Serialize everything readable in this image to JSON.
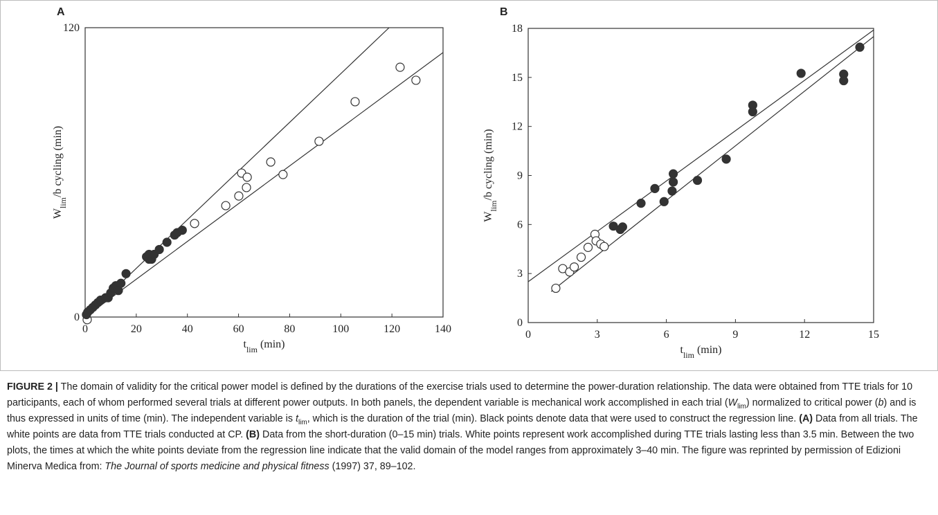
{
  "chart_data": [
    {
      "type": "scatter",
      "panel": "A",
      "xlabel": [
        "t",
        "lim",
        " (min)"
      ],
      "ylabel": [
        "W",
        "lim",
        "/b cycling (min)"
      ],
      "xlim": [
        0,
        140
      ],
      "ylim": [
        0,
        120
      ],
      "xticks": [
        0,
        20,
        40,
        60,
        80,
        100,
        120,
        140
      ],
      "yticks": [
        0,
        120
      ],
      "color": "#333333",
      "series": [
        {
          "marker": "open",
          "x": [
            0.8,
            42.8,
            55,
            60.1,
            61.2,
            63.1,
            63.4,
            72.6,
            77.4,
            91.5,
            105.6,
            123.2,
            129.4
          ],
          "values": [
            -1.1,
            38.8,
            46.2,
            50.2,
            59.7,
            53.7,
            58,
            64.3,
            59.1,
            72.9,
            89.3,
            103.6,
            98.2
          ]
        },
        {
          "marker": "filled",
          "x": [
            0.5,
            1,
            2,
            3,
            4,
            5,
            6,
            8,
            9,
            10,
            11,
            12,
            13,
            14,
            16,
            24,
            25,
            26,
            25,
            27,
            29,
            32,
            35,
            36,
            38
          ],
          "values": [
            1,
            2,
            3,
            4,
            5,
            6,
            7,
            8,
            8,
            10,
            12,
            13,
            11,
            14,
            18,
            25,
            24,
            24,
            26,
            26,
            28,
            31,
            34,
            35,
            36
          ]
        }
      ],
      "lines": [
        {
          "x": [
            0,
            118.9
          ],
          "values": [
            0,
            120
          ]
        },
        {
          "x": [
            0,
            140
          ],
          "values": [
            0,
            109.7
          ]
        }
      ]
    },
    {
      "type": "scatter",
      "panel": "B",
      "xlabel": [
        "t",
        "lim",
        " (min)"
      ],
      "ylabel": [
        "W",
        "lim",
        "/b cycling (min)"
      ],
      "xlim": [
        0,
        15
      ],
      "ylim": [
        0,
        18
      ],
      "xticks": [
        0,
        3,
        6,
        9,
        12,
        15
      ],
      "yticks": [
        0,
        3,
        6,
        9,
        12,
        15,
        18
      ],
      "color": "#333333",
      "series": [
        {
          "marker": "open",
          "x": [
            1.2,
            1.5,
            1.8,
            2.0,
            2.3,
            2.6,
            2.9,
            2.95,
            3.15,
            3.3
          ],
          "values": [
            2.1,
            3.3,
            3.1,
            3.4,
            4.0,
            4.6,
            5.4,
            5.0,
            4.8,
            4.65
          ]
        },
        {
          "marker": "filled",
          "x": [
            3.7,
            4.0,
            4.1,
            4.9,
            5.5,
            5.9,
            6.25,
            6.3,
            6.3,
            7.35,
            8.6,
            9.75,
            9.75,
            11.85,
            13.7,
            13.7,
            14.4
          ],
          "values": [
            5.9,
            5.7,
            5.85,
            7.3,
            8.2,
            7.4,
            8.05,
            8.6,
            9.1,
            8.7,
            10.0,
            13.3,
            12.9,
            15.25,
            15.2,
            14.8,
            16.85
          ]
        }
      ],
      "lines": [
        {
          "x": [
            0,
            15
          ],
          "values": [
            2.5,
            17.9
          ]
        },
        {
          "x": [
            1.0,
            15
          ],
          "values": [
            1.9,
            17.5
          ]
        }
      ]
    }
  ],
  "caption": [
    {
      "text": "FIGURE 2 |",
      "style": "bold"
    },
    {
      "text": " The domain of validity for the critical power model is defined by the durations of the exercise trials used to determine the power-duration relationship. The data were obtained from TTE trials for 10 participants, each of whom performed several trials at different power outputs. In both panels, the dependent variable is mechanical work accomplished in each trial (",
      "style": "normal"
    },
    {
      "text": "W",
      "style": "italic"
    },
    {
      "text": "lim",
      "style": "sub"
    },
    {
      "text": ") normalized to critical power (",
      "style": "normal"
    },
    {
      "text": "b",
      "style": "italic"
    },
    {
      "text": ") and is thus expressed in units of time (min). The independent variable is ",
      "style": "normal"
    },
    {
      "text": "t",
      "style": "italic"
    },
    {
      "text": "lim",
      "style": "sub"
    },
    {
      "text": ", which is the duration of the trial (min). Black points denote data that were used to construct the regression line. ",
      "style": "normal"
    },
    {
      "text": "(A)",
      "style": "bold"
    },
    {
      "text": " Data from all trials. The white points are data from TTE trials conducted at CP. ",
      "style": "normal"
    },
    {
      "text": "(B)",
      "style": "bold"
    },
    {
      "text": " Data from the short-duration (0–15 min) trials. White points represent work accomplished during TTE trials lasting less than 3.5 min. Between the two plots, the times at which the white points deviate from the regression line indicate that the valid domain of the model ranges from approximately 3–40 min. The figure was reprinted by permission of Edizioni Minerva Medica from: ",
      "style": "normal"
    },
    {
      "text": "The Journal of sports medicine and physical fitness",
      "style": "italic"
    },
    {
      "text": " (1997) 37, 89–102.",
      "style": "normal"
    }
  ]
}
